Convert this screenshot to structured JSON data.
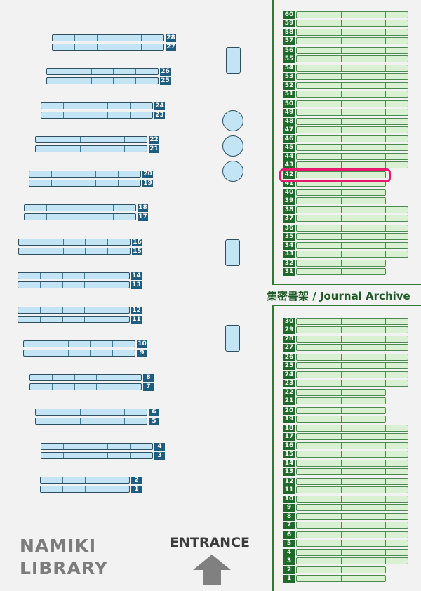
{
  "library_name_line1": "NAMIKI",
  "library_name_line2": "LIBRARY",
  "entrance_label": "ENTRANCE",
  "archive_title": "集密書架 / Journal Archive",
  "highlighted_shelf": "42",
  "colors": {
    "general_shelf": "#c3e4f5",
    "archive_shelf": "#d9f1d2",
    "highlight": "#e8186e",
    "archive_wall": "#2f7a35"
  },
  "general_shelves": [
    {
      "number": "28",
      "cells": 5
    },
    {
      "number": "27",
      "cells": 5
    },
    {
      "number": "26",
      "cells": 5
    },
    {
      "number": "25",
      "cells": 5
    },
    {
      "number": "24",
      "cells": 5
    },
    {
      "number": "23",
      "cells": 5
    },
    {
      "number": "22",
      "cells": 5
    },
    {
      "number": "21",
      "cells": 5
    },
    {
      "number": "20",
      "cells": 5
    },
    {
      "number": "19",
      "cells": 5
    },
    {
      "number": "18",
      "cells": 5
    },
    {
      "number": "17",
      "cells": 5
    },
    {
      "number": "16",
      "cells": 5
    },
    {
      "number": "15",
      "cells": 5
    },
    {
      "number": "14",
      "cells": 5
    },
    {
      "number": "13",
      "cells": 5
    },
    {
      "number": "12",
      "cells": 5
    },
    {
      "number": "11",
      "cells": 5
    },
    {
      "number": "10",
      "cells": 5
    },
    {
      "number": "9",
      "cells": 5
    },
    {
      "number": "8",
      "cells": 5
    },
    {
      "number": "7",
      "cells": 5
    },
    {
      "number": "6",
      "cells": 5
    },
    {
      "number": "5",
      "cells": 5
    },
    {
      "number": "4",
      "cells": 5
    },
    {
      "number": "3",
      "cells": 5
    },
    {
      "number": "2",
      "cells": 4
    },
    {
      "number": "1",
      "cells": 4
    }
  ],
  "archive_upper": [
    {
      "number": "60",
      "cells": 5
    },
    {
      "number": "59",
      "cells": 5
    },
    {
      "number": "58",
      "cells": 5
    },
    {
      "number": "57",
      "cells": 5
    },
    {
      "number": "56",
      "cells": 5
    },
    {
      "number": "55",
      "cells": 5
    },
    {
      "number": "54",
      "cells": 5
    },
    {
      "number": "53",
      "cells": 5
    },
    {
      "number": "52",
      "cells": 5
    },
    {
      "number": "51",
      "cells": 5
    },
    {
      "number": "50",
      "cells": 5
    },
    {
      "number": "49",
      "cells": 5
    },
    {
      "number": "48",
      "cells": 5
    },
    {
      "number": "47",
      "cells": 5
    },
    {
      "number": "46",
      "cells": 5
    },
    {
      "number": "45",
      "cells": 5
    },
    {
      "number": "44",
      "cells": 5
    },
    {
      "number": "43",
      "cells": 5
    },
    {
      "number": "42",
      "cells": 4
    },
    {
      "number": "41",
      "cells": 4
    },
    {
      "number": "40",
      "cells": 4
    },
    {
      "number": "39",
      "cells": 4
    },
    {
      "number": "38",
      "cells": 5
    },
    {
      "number": "37",
      "cells": 5
    },
    {
      "number": "36",
      "cells": 5
    },
    {
      "number": "35",
      "cells": 5
    },
    {
      "number": "34",
      "cells": 5
    },
    {
      "number": "33",
      "cells": 5
    },
    {
      "number": "32",
      "cells": 4
    },
    {
      "number": "31",
      "cells": 4
    }
  ],
  "archive_lower": [
    {
      "number": "30",
      "cells": 5
    },
    {
      "number": "29",
      "cells": 5
    },
    {
      "number": "28",
      "cells": 5
    },
    {
      "number": "27",
      "cells": 5
    },
    {
      "number": "26",
      "cells": 5
    },
    {
      "number": "25",
      "cells": 5
    },
    {
      "number": "24",
      "cells": 5
    },
    {
      "number": "23",
      "cells": 5
    },
    {
      "number": "22",
      "cells": 4
    },
    {
      "number": "21",
      "cells": 4
    },
    {
      "number": "20",
      "cells": 4
    },
    {
      "number": "19",
      "cells": 4
    },
    {
      "number": "18",
      "cells": 5
    },
    {
      "number": "17",
      "cells": 5
    },
    {
      "number": "16",
      "cells": 5
    },
    {
      "number": "15",
      "cells": 5
    },
    {
      "number": "14",
      "cells": 5
    },
    {
      "number": "13",
      "cells": 5
    },
    {
      "number": "12",
      "cells": 5
    },
    {
      "number": "11",
      "cells": 5
    },
    {
      "number": "10",
      "cells": 5
    },
    {
      "number": "9",
      "cells": 5
    },
    {
      "number": "8",
      "cells": 5
    },
    {
      "number": "7",
      "cells": 5
    },
    {
      "number": "6",
      "cells": 5
    },
    {
      "number": "5",
      "cells": 5
    },
    {
      "number": "4",
      "cells": 5
    },
    {
      "number": "3",
      "cells": 5
    },
    {
      "number": "2",
      "cells": 4
    },
    {
      "number": "1",
      "cells": 4
    }
  ]
}
